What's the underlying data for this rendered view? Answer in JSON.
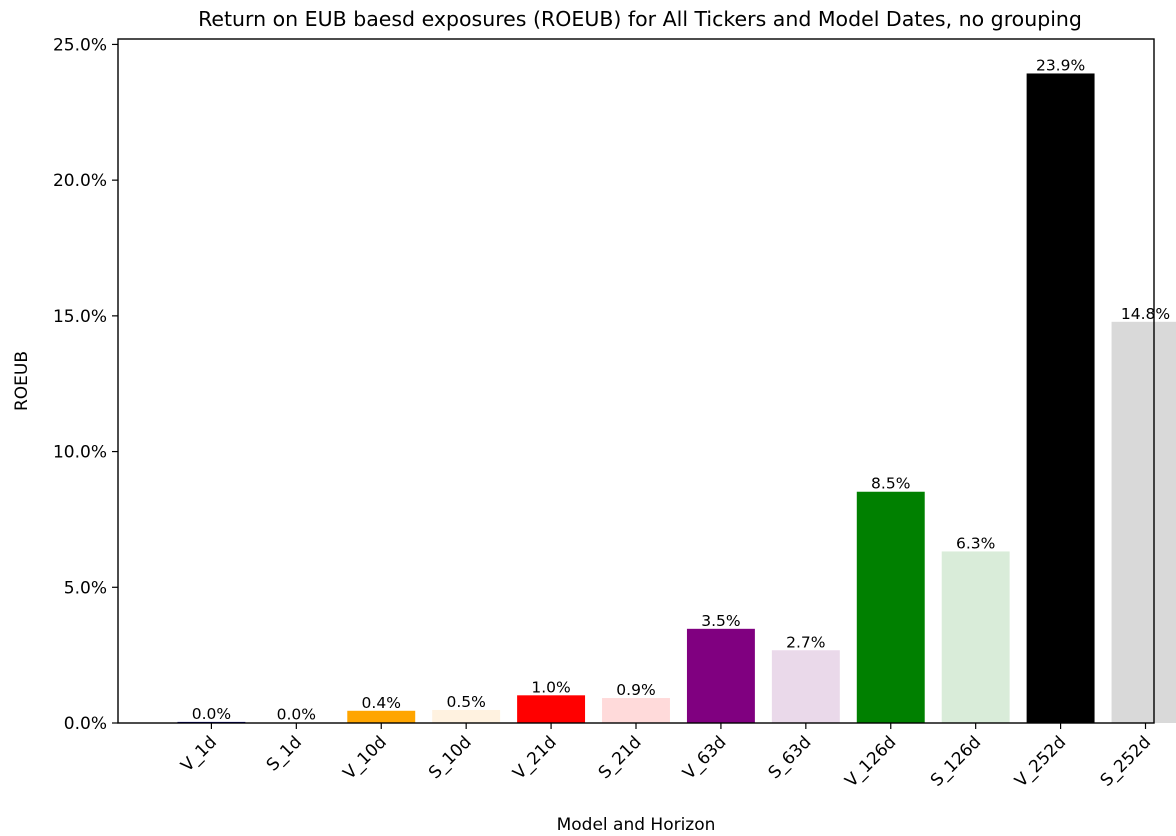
{
  "chart_data": {
    "type": "bar",
    "title": "Return on EUB baesd exposures (ROEUB) for All Tickers and Model Dates, no grouping",
    "xlabel": "Model and Horizon",
    "ylabel": "ROEUB",
    "ylim": [
      0,
      25.2
    ],
    "yticks": [
      "0.0%",
      "5.0%",
      "10.0%",
      "15.0%",
      "20.0%",
      "25.0%"
    ],
    "ytick_values": [
      0,
      5,
      10,
      15,
      20,
      25
    ],
    "grid": false,
    "categories": [
      "V_1d",
      "S_1d",
      "V_10d",
      "S_10d",
      "V_21d",
      "S_21d",
      "V_63d",
      "S_63d",
      "V_126d",
      "S_126d",
      "V_252d",
      "S_252d"
    ],
    "values": [
      0.04,
      0.01,
      0.45,
      0.48,
      1.02,
      0.92,
      3.47,
      2.68,
      8.52,
      6.32,
      23.93,
      14.78
    ],
    "value_labels": [
      "0.0%",
      "0.0%",
      "0.4%",
      "0.5%",
      "1.0%",
      "0.9%",
      "3.5%",
      "2.7%",
      "8.5%",
      "6.3%",
      "23.9%",
      "14.8%"
    ],
    "colors": [
      "#00008b",
      "#add8e6",
      "#ffa500",
      "#fff2e0",
      "#ff0000",
      "#ffdada",
      "#800080",
      "#ead9ea",
      "#008000",
      "#d9ecd9",
      "#000000",
      "#d9d9d9"
    ]
  }
}
